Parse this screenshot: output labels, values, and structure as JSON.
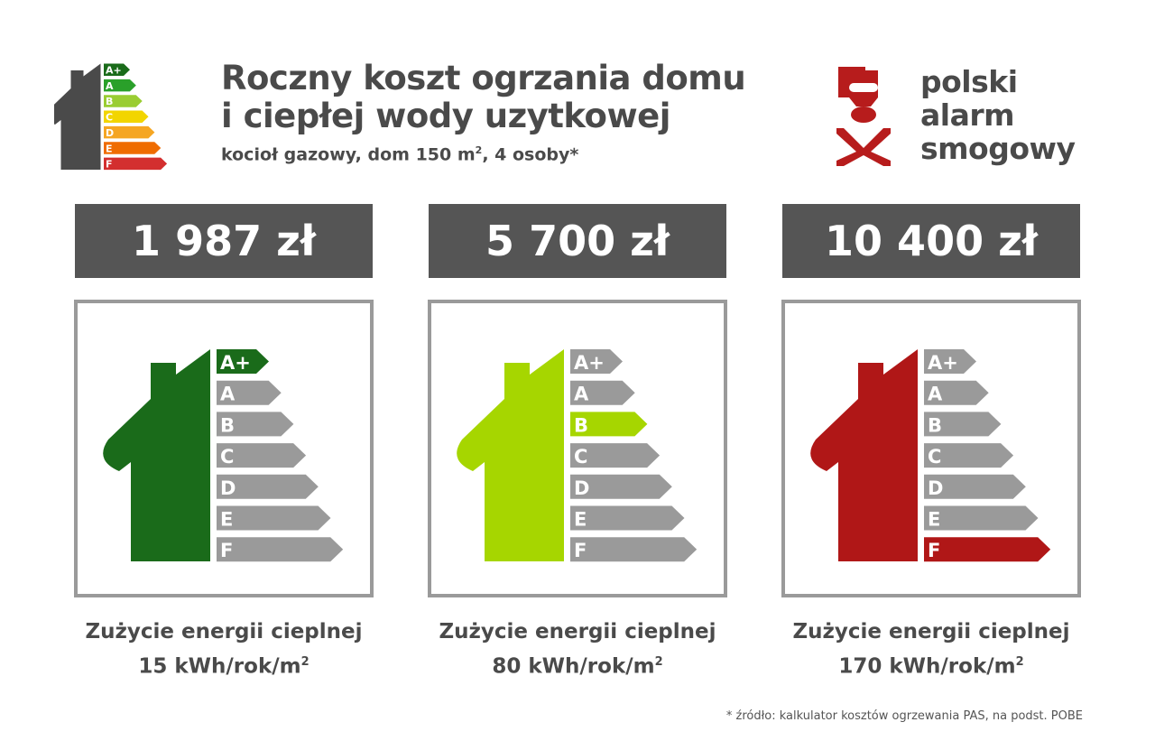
{
  "header": {
    "title_line1": "Roczny koszt ogrzania domu",
    "title_line2": "i ciepłej wody uzytkowej",
    "subtitle_pre": "kocioł gazowy, dom 150 m",
    "subtitle_sup": "2",
    "subtitle_post": ", 4 osoby*",
    "icon": "energy-label-house-icon"
  },
  "logo": {
    "line1": "polski",
    "line2": "alarm",
    "line3": "smogowy",
    "color": "#b71c1c"
  },
  "classes": [
    "A+",
    "A",
    "B",
    "C",
    "D",
    "E",
    "F"
  ],
  "class_colors": [
    "#1a6b1a",
    "#2aa02a",
    "#9acd32",
    "#f2d500",
    "#f5a623",
    "#ef6c00",
    "#d32f2f"
  ],
  "inactive_color": "#9a9a9a",
  "cards": [
    {
      "price": "1 987 zł",
      "class": "A+",
      "color": "#1a6b1a",
      "caption_line1": "Zużycie energii cieplnej",
      "caption_value": "15 kWh/rok/m",
      "caption_sup": "2"
    },
    {
      "price": "5 700 zł",
      "class": "B",
      "color": "#a6d600",
      "caption_line1": "Zużycie energii cieplnej",
      "caption_value": "80 kWh/rok/m",
      "caption_sup": "2"
    },
    {
      "price": "10 400 zł",
      "class": "F",
      "color": "#b01717",
      "caption_line1": "Zużycie energii cieplnej",
      "caption_value": "170 kWh/rok/m",
      "caption_sup": "2"
    }
  ],
  "footnote": "* źródło: kalkulator kosztów ogrzewania PAS, na podst. POBE"
}
